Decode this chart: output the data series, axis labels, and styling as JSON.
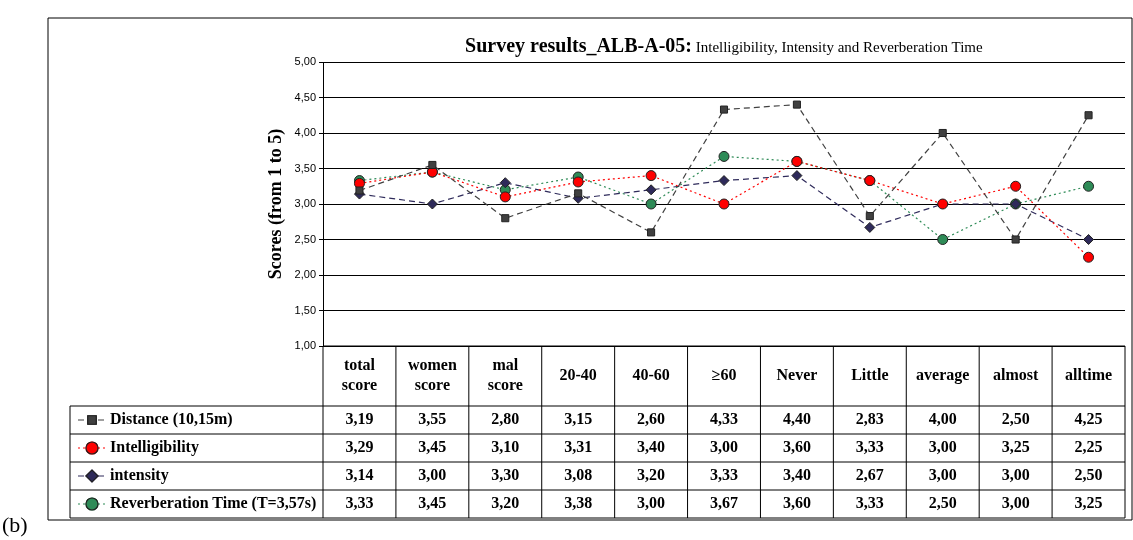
{
  "chart_data": {
    "type": "line",
    "title": "Survey results_ALB-A-05: Intelligibility, Intensity and Reverberation Time",
    "ylabel": "Scores (from 1 to 5)",
    "categories": [
      "total score",
      "women score",
      "mal score",
      "20-40",
      "40-60",
      "≥60",
      "Never",
      "Little",
      "average",
      "almost",
      "alltime"
    ],
    "ylim": [
      1,
      5
    ],
    "yticks": [
      {
        "value": 1,
        "label": "1,00"
      },
      {
        "value": 1.5,
        "label": "1,50"
      },
      {
        "value": 2,
        "label": "2,00"
      },
      {
        "value": 2.5,
        "label": "2,50"
      },
      {
        "value": 3,
        "label": "3,00"
      },
      {
        "value": 3.5,
        "label": "3,50"
      },
      {
        "value": 4,
        "label": "4,00"
      },
      {
        "value": 4.5,
        "label": "4,50"
      },
      {
        "value": 5,
        "label": "5,00"
      }
    ],
    "grid": "y",
    "legend": "bottom left",
    "series": [
      {
        "name": "Distance (10,15m)",
        "color": "#404040",
        "marker": "square",
        "line_style": "dashed",
        "values": [
          3.19,
          3.55,
          2.8,
          3.15,
          2.6,
          4.33,
          4.4,
          2.83,
          4.0,
          2.5,
          4.25
        ],
        "value_labels": [
          "3,19",
          "3,55",
          "2,80",
          "3,15",
          "2,60",
          "4,33",
          "4,40",
          "2,83",
          "4,00",
          "2,50",
          "4,25"
        ]
      },
      {
        "name": "Intelligibility",
        "color": "#ff0000",
        "marker": "circle",
        "line_style": "dotted",
        "values": [
          3.29,
          3.45,
          3.1,
          3.31,
          3.4,
          3.0,
          3.6,
          3.33,
          3.0,
          3.25,
          2.25
        ],
        "value_labels": [
          "3,29",
          "3,45",
          "3,10",
          "3,31",
          "3,40",
          "3,00",
          "3,60",
          "3,33",
          "3,00",
          "3,25",
          "2,25"
        ]
      },
      {
        "name": "intensity",
        "color": "#2e2a5a",
        "marker": "diamond",
        "line_style": "dashed",
        "values": [
          3.14,
          3.0,
          3.3,
          3.08,
          3.2,
          3.33,
          3.4,
          2.67,
          3.0,
          3.0,
          2.5
        ],
        "value_labels": [
          "3,14",
          "3,00",
          "3,30",
          "3,08",
          "3,20",
          "3,33",
          "3,40",
          "2,67",
          "3,00",
          "3,00",
          "2,50"
        ]
      },
      {
        "name": "Reverberation Time (T=3,57s)",
        "color": "#2e8b57",
        "marker": "circle",
        "line_style": "dotted",
        "values": [
          3.33,
          3.45,
          3.2,
          3.38,
          3.0,
          3.67,
          3.6,
          3.33,
          2.5,
          3.0,
          3.25
        ],
        "value_labels": [
          "3,33",
          "3,45",
          "3,20",
          "3,38",
          "3,00",
          "3,67",
          "3,60",
          "3,33",
          "2,50",
          "3,00",
          "3,25"
        ]
      }
    ],
    "annotations": [
      "(b)"
    ]
  }
}
